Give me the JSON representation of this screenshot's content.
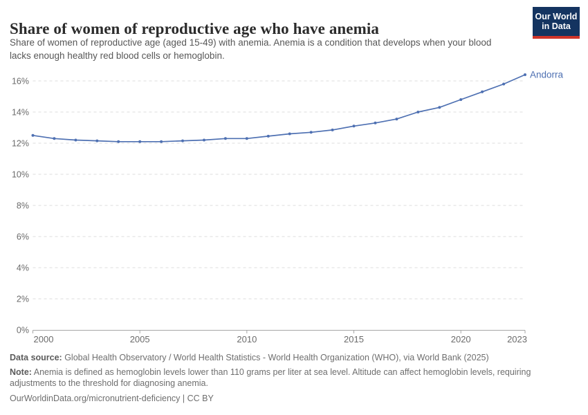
{
  "header": {
    "logo": {
      "line1": "Our World",
      "line2": "in Data"
    }
  },
  "chart_data": {
    "type": "line",
    "title": "Share of women of reproductive age who have anemia",
    "subtitle": "Share of women of reproductive age (aged 15-49) with anemia. Anemia is a condition that develops when your blood lacks enough healthy red blood cells or hemoglobin.",
    "x": [
      2000,
      2001,
      2002,
      2003,
      2004,
      2005,
      2006,
      2007,
      2008,
      2009,
      2010,
      2011,
      2012,
      2013,
      2014,
      2015,
      2016,
      2017,
      2018,
      2019,
      2020,
      2021,
      2022,
      2023
    ],
    "series": [
      {
        "name": "Andorra",
        "color": "#4e70b2",
        "values": [
          12.5,
          12.3,
          12.2,
          12.15,
          12.1,
          12.1,
          12.1,
          12.15,
          12.2,
          12.3,
          12.3,
          12.45,
          12.6,
          12.7,
          12.85,
          13.1,
          13.3,
          13.55,
          14.0,
          14.3,
          14.8,
          15.3,
          15.8,
          16.4
        ]
      }
    ],
    "xlim": [
      2000,
      2023
    ],
    "ylim": [
      0,
      16
    ],
    "y_ticks": [
      0,
      2,
      4,
      6,
      8,
      10,
      12,
      14,
      16
    ],
    "y_tick_suffix": "%",
    "x_ticks": [
      2000,
      2005,
      2010,
      2015,
      2020,
      2023
    ],
    "grid": "horizontal-dashed",
    "legend_position": "line-end-label"
  },
  "colors": {
    "grid": "#dcdcdc",
    "axis": "#a5a5a5",
    "tick_label": "#6b6b6b",
    "logo_bg": "#143460",
    "logo_bar": "#cf3429"
  },
  "footer": {
    "data_source_label": "Data source:",
    "data_source_text": " Global Health Observatory / World Health Statistics - World Health Organization (WHO), via World Bank (2025)",
    "note_label": "Note:",
    "note_text": " Anemia is defined as hemoglobin levels lower than 110 grams per liter at sea level. Altitude can affect hemoglobin levels, requiring adjustments to the threshold for diagnosing anemia.",
    "license_text": "OurWorldinData.org/micronutrient-deficiency | CC BY"
  }
}
